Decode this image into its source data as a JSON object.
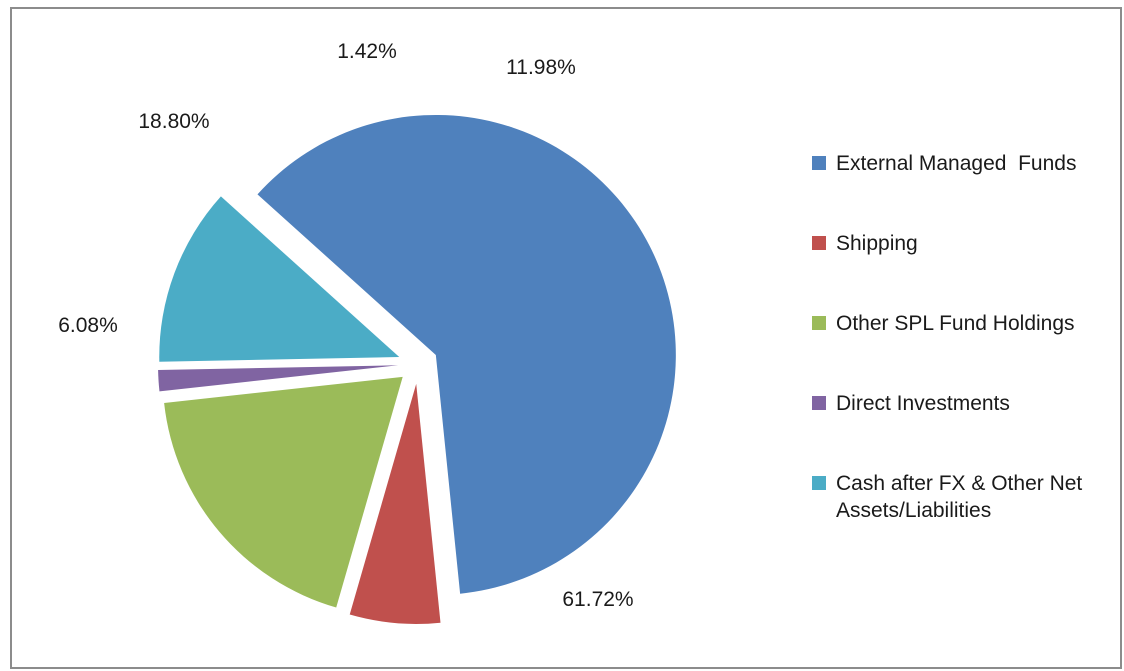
{
  "chart_data": {
    "type": "pie",
    "title": "",
    "legend_position": "right",
    "slices": [
      {
        "name": "External Managed  Funds",
        "value": 61.72,
        "label": "61.72%",
        "color": "#4F81BD"
      },
      {
        "name": "Shipping",
        "value": 6.08,
        "label": "6.08%",
        "color": "#C0504D"
      },
      {
        "name": "Other SPL Fund Holdings",
        "value": 18.8,
        "label": "18.80%",
        "color": "#9BBB59"
      },
      {
        "name": "Direct Investments",
        "value": 1.42,
        "label": "1.42%",
        "color": "#8064A2"
      },
      {
        "name": "Cash after FX & Other Net Assets/Liabilities",
        "value": 11.98,
        "label": "11.98%",
        "color": "#4BACC6"
      }
    ]
  }
}
